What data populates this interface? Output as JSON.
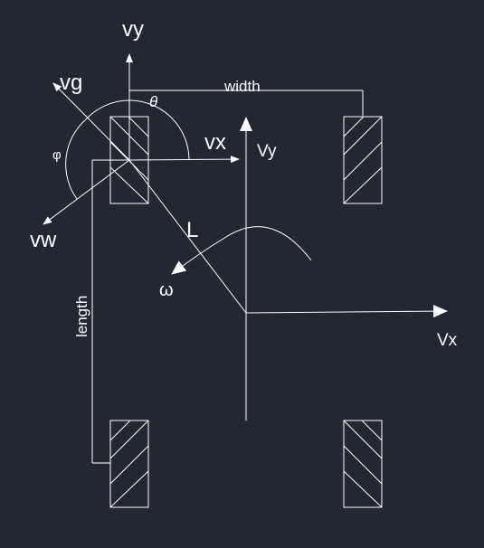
{
  "diagram": {
    "labels": {
      "vy": "vy",
      "vg": "vg",
      "theta": "θ",
      "width": "width",
      "vx": "vx",
      "body_vy": "Vy",
      "phi": "φ",
      "vw": "vw",
      "L": "L",
      "omega": "ω",
      "length": "length",
      "body_vx": "Vx"
    },
    "colors": {
      "background": "#232730",
      "stroke": "#ffffff"
    }
  }
}
